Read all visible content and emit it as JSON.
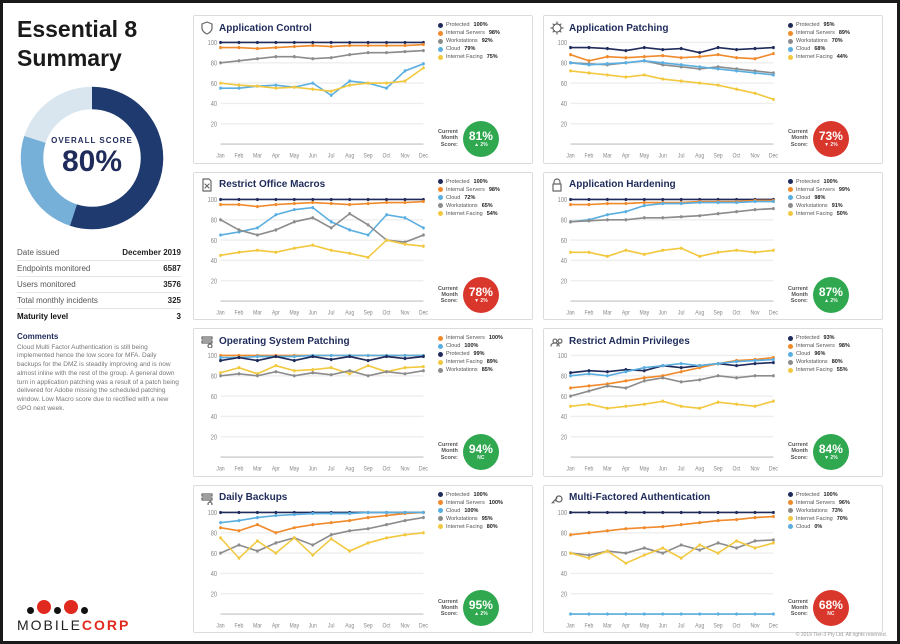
{
  "palette": {
    "brand_navy": "#1f2b5a",
    "good": "#2fa84f",
    "bad": "#d9372c",
    "donut_bg": "#d9e6ef",
    "donut_fg_light": "#6aaad6",
    "donut_fg_dark": "#1f3a6e"
  },
  "series_colors": {
    "protected": "#1f2b5a",
    "internal_servers": "#f08a2a",
    "workstations": "#8c8c8c",
    "cloud": "#5aaee0",
    "internet_facing": "#f2c83f"
  },
  "sidebar": {
    "title": "Essential 8 Summary",
    "overall": {
      "label": "OVERALL SCORE",
      "value": "80%",
      "pct": 80
    },
    "stats": [
      {
        "k": "Date issued",
        "v": "December 2019"
      },
      {
        "k": "Endpoints monitored",
        "v": "6587"
      },
      {
        "k": "Users monitored",
        "v": "3576"
      },
      {
        "k": "Total monthly incidents",
        "v": "325"
      },
      {
        "k": "Maturity level",
        "v": "3",
        "bold": true
      }
    ],
    "comments_h": "Comments",
    "comments_body": "Cloud Multi Factor Authentication is still being implemented hence the low score for MFA. Daily backups for the DMZ is steadily improving and is now almost inline with the rest of the group. A general down turn in application patching was a result of a patch being delivered for Adobe missing the scheduled patching window. Low Macro score due to rectified with a new GPO next week.",
    "logo": {
      "text_a": "MOBILE",
      "text_b": "CORP",
      "dot_color": "#e12a1f"
    }
  },
  "copyright": "© 2019 Tier-3 Pty Ltd. All rights reserved.",
  "chart_layout": {
    "months": [
      "Jan",
      "Feb",
      "Mar",
      "Apr",
      "May",
      "Jun",
      "Jul",
      "Aug",
      "Sep",
      "Oct",
      "Nov",
      "Dec"
    ],
    "yticks": [
      20,
      40,
      60,
      80,
      100
    ],
    "ylim": [
      0,
      100
    ]
  },
  "cards": [
    {
      "id": "app-control",
      "title": "Application Control",
      "icon": "shield",
      "score": {
        "pct": "81%",
        "delta": "▲ 2%",
        "color": "good"
      },
      "score_label": "Current Month Score:",
      "legend": [
        {
          "key": "protected",
          "label": "Protected",
          "val": "100%"
        },
        {
          "key": "internal_servers",
          "label": "Internal Servers",
          "val": "98%"
        },
        {
          "key": "workstations",
          "label": "Workstations",
          "val": "92%"
        },
        {
          "key": "cloud",
          "label": "Cloud",
          "val": "79%"
        },
        {
          "key": "internet_facing",
          "label": "Internet Facing",
          "val": "75%"
        }
      ],
      "series": {
        "protected": [
          100,
          100,
          100,
          100,
          100,
          100,
          100,
          100,
          100,
          100,
          100,
          100
        ],
        "internal_servers": [
          95,
          95,
          94,
          95,
          96,
          97,
          96,
          97,
          97,
          97,
          97,
          98
        ],
        "workstations": [
          80,
          82,
          84,
          86,
          86,
          84,
          85,
          88,
          90,
          90,
          91,
          92
        ],
        "cloud": [
          55,
          55,
          57,
          58,
          56,
          60,
          48,
          62,
          60,
          55,
          72,
          79
        ],
        "internet_facing": [
          60,
          58,
          57,
          55,
          56,
          54,
          52,
          58,
          60,
          60,
          62,
          75
        ]
      }
    },
    {
      "id": "app-patching",
      "title": "Application Patching",
      "icon": "gear",
      "score": {
        "pct": "73%",
        "delta": "▼ 2%",
        "color": "bad"
      },
      "score_label": "Current Month Score:",
      "legend": [
        {
          "key": "protected",
          "label": "Protected",
          "val": "95%"
        },
        {
          "key": "internal_servers",
          "label": "Internal Servers",
          "val": "89%"
        },
        {
          "key": "workstations",
          "label": "Workstations",
          "val": "70%"
        },
        {
          "key": "cloud",
          "label": "Cloud",
          "val": "68%"
        },
        {
          "key": "internet_facing",
          "label": "Internet Facing",
          "val": "44%"
        }
      ],
      "series": {
        "protected": [
          95,
          95,
          94,
          92,
          95,
          93,
          94,
          90,
          95,
          93,
          94,
          95
        ],
        "internal_servers": [
          88,
          82,
          86,
          85,
          86,
          87,
          85,
          86,
          88,
          85,
          84,
          89
        ],
        "workstations": [
          80,
          79,
          78,
          80,
          82,
          78,
          76,
          74,
          76,
          74,
          72,
          70
        ],
        "cloud": [
          80,
          78,
          79,
          80,
          82,
          80,
          78,
          76,
          74,
          72,
          70,
          68
        ],
        "internet_facing": [
          72,
          70,
          68,
          66,
          68,
          64,
          62,
          60,
          58,
          54,
          50,
          44
        ]
      }
    },
    {
      "id": "restrict-macros",
      "title": "Restrict Office Macros",
      "icon": "doc-x",
      "score": {
        "pct": "78%",
        "delta": "▼ 2%",
        "color": "bad"
      },
      "score_label": "Current Month Score:",
      "legend": [
        {
          "key": "protected",
          "label": "Protected",
          "val": "100%"
        },
        {
          "key": "internal_servers",
          "label": "Internal Servers",
          "val": "98%"
        },
        {
          "key": "cloud",
          "label": "Cloud",
          "val": "72%"
        },
        {
          "key": "workstations",
          "label": "Workstations",
          "val": "65%"
        },
        {
          "key": "internet_facing",
          "label": "Internet Facing",
          "val": "54%"
        }
      ],
      "series": {
        "protected": [
          100,
          100,
          100,
          100,
          100,
          100,
          100,
          100,
          100,
          100,
          100,
          100
        ],
        "internal_servers": [
          95,
          95,
          93,
          95,
          96,
          97,
          96,
          95,
          96,
          97,
          97,
          98
        ],
        "cloud": [
          65,
          68,
          72,
          85,
          90,
          92,
          78,
          70,
          65,
          85,
          82,
          72
        ],
        "workstations": [
          80,
          70,
          65,
          70,
          78,
          82,
          72,
          86,
          75,
          60,
          58,
          65
        ],
        "internet_facing": [
          45,
          48,
          50,
          48,
          52,
          55,
          50,
          47,
          43,
          60,
          56,
          54
        ]
      }
    },
    {
      "id": "app-hardening",
      "title": "Application Hardening",
      "icon": "lock",
      "score": {
        "pct": "87%",
        "delta": "▲ 2%",
        "color": "good"
      },
      "score_label": "Current Month Score:",
      "legend": [
        {
          "key": "protected",
          "label": "Protected",
          "val": "100%"
        },
        {
          "key": "internal_servers",
          "label": "Internal Servers",
          "val": "99%"
        },
        {
          "key": "cloud",
          "label": "Cloud",
          "val": "98%"
        },
        {
          "key": "workstations",
          "label": "Workstations",
          "val": "91%"
        },
        {
          "key": "internet_facing",
          "label": "Internet Facing",
          "val": "50%"
        }
      ],
      "series": {
        "protected": [
          100,
          100,
          100,
          100,
          100,
          100,
          100,
          100,
          100,
          100,
          100,
          100
        ],
        "internal_servers": [
          95,
          95,
          96,
          96,
          97,
          97,
          97,
          98,
          98,
          98,
          99,
          99
        ],
        "cloud": [
          78,
          80,
          85,
          88,
          94,
          96,
          96,
          97,
          97,
          97,
          98,
          98
        ],
        "workstations": [
          78,
          79,
          80,
          80,
          82,
          82,
          83,
          84,
          86,
          88,
          90,
          91
        ],
        "internet_facing": [
          48,
          48,
          44,
          50,
          46,
          50,
          52,
          44,
          48,
          50,
          48,
          50
        ]
      }
    },
    {
      "id": "os-patching",
      "title": "Operating System Patching",
      "icon": "stack-gear",
      "score": {
        "pct": "94%",
        "delta": "NC",
        "color": "good"
      },
      "score_label": "Current Month Score:",
      "legend": [
        {
          "key": "internal_servers",
          "label": "Internal Servers",
          "val": "100%"
        },
        {
          "key": "cloud",
          "label": "Cloud",
          "val": "100%"
        },
        {
          "key": "protected",
          "label": "Protected",
          "val": "99%"
        },
        {
          "key": "internet_facing",
          "label": "Internet Facing",
          "val": "89%"
        },
        {
          "key": "workstations",
          "label": "Workstations",
          "val": "85%"
        }
      ],
      "series": {
        "internal_servers": [
          100,
          100,
          100,
          100,
          100,
          100,
          100,
          100,
          100,
          100,
          100,
          100
        ],
        "cloud": [
          98,
          98,
          99,
          99,
          99,
          100,
          100,
          100,
          100,
          100,
          100,
          100
        ],
        "protected": [
          95,
          98,
          95,
          99,
          95,
          99,
          96,
          99,
          95,
          99,
          97,
          99
        ],
        "internet_facing": [
          83,
          88,
          82,
          90,
          85,
          86,
          88,
          82,
          90,
          84,
          88,
          89
        ],
        "workstations": [
          80,
          82,
          80,
          84,
          80,
          83,
          81,
          85,
          80,
          84,
          82,
          85
        ]
      }
    },
    {
      "id": "restrict-admin",
      "title": "Restrict Admin Privileges",
      "icon": "users",
      "score": {
        "pct": "84%",
        "delta": "▼ 2%",
        "color": "good"
      },
      "score_label": "Current Month Score:",
      "legend": [
        {
          "key": "protected",
          "label": "Protected",
          "val": "93%"
        },
        {
          "key": "internal_servers",
          "label": "Internal Servers",
          "val": "98%"
        },
        {
          "key": "cloud",
          "label": "Cloud",
          "val": "96%"
        },
        {
          "key": "workstations",
          "label": "Workstations",
          "val": "80%"
        },
        {
          "key": "internet_facing",
          "label": "Internet Facing",
          "val": "55%"
        }
      ],
      "series": {
        "protected": [
          83,
          85,
          84,
          86,
          85,
          90,
          88,
          90,
          92,
          90,
          92,
          93
        ],
        "internal_servers": [
          68,
          70,
          72,
          75,
          78,
          80,
          84,
          88,
          92,
          95,
          96,
          98
        ],
        "cloud": [
          80,
          82,
          80,
          84,
          88,
          90,
          92,
          90,
          92,
          94,
          95,
          96
        ],
        "workstations": [
          60,
          65,
          70,
          68,
          75,
          78,
          74,
          76,
          80,
          78,
          80,
          80
        ],
        "internet_facing": [
          50,
          52,
          48,
          50,
          52,
          55,
          50,
          48,
          54,
          52,
          50,
          55
        ]
      }
    },
    {
      "id": "daily-backups",
      "title": "Daily Backups",
      "icon": "stack-clock",
      "score": {
        "pct": "95%",
        "delta": "▲ 2%",
        "color": "good"
      },
      "score_label": "Current Month Score:",
      "legend": [
        {
          "key": "protected",
          "label": "Protected",
          "val": "100%"
        },
        {
          "key": "internal_servers",
          "label": "Internal Servers",
          "val": "100%"
        },
        {
          "key": "cloud",
          "label": "Cloud",
          "val": "100%"
        },
        {
          "key": "workstations",
          "label": "Workstations",
          "val": "95%"
        },
        {
          "key": "internet_facing",
          "label": "Internet Facing",
          "val": "80%"
        }
      ],
      "series": {
        "protected": [
          100,
          100,
          100,
          100,
          100,
          100,
          100,
          100,
          100,
          100,
          100,
          100
        ],
        "internal_servers": [
          85,
          82,
          88,
          80,
          85,
          88,
          90,
          92,
          95,
          97,
          99,
          100
        ],
        "cloud": [
          90,
          92,
          95,
          97,
          98,
          99,
          99,
          99,
          100,
          100,
          100,
          100
        ],
        "workstations": [
          60,
          68,
          62,
          70,
          75,
          68,
          78,
          82,
          84,
          88,
          92,
          95
        ],
        "internet_facing": [
          75,
          55,
          72,
          60,
          75,
          58,
          74,
          62,
          70,
          75,
          78,
          80
        ]
      }
    },
    {
      "id": "mfa",
      "title": "Multi-Factored Authentication",
      "icon": "key",
      "score": {
        "pct": "68%",
        "delta": "NC",
        "color": "bad"
      },
      "score_label": "Current Month Score:",
      "legend": [
        {
          "key": "protected",
          "label": "Protected",
          "val": "100%"
        },
        {
          "key": "internal_servers",
          "label": "Internal Servers",
          "val": "96%"
        },
        {
          "key": "workstations",
          "label": "Workstations",
          "val": "73%"
        },
        {
          "key": "internet_facing",
          "label": "Internet Facing",
          "val": "70%"
        },
        {
          "key": "cloud",
          "label": "Cloud",
          "val": "0%"
        }
      ],
      "series": {
        "protected": [
          100,
          100,
          100,
          100,
          100,
          100,
          100,
          100,
          100,
          100,
          100,
          100
        ],
        "internal_servers": [
          78,
          80,
          82,
          84,
          85,
          86,
          88,
          90,
          92,
          93,
          95,
          96
        ],
        "workstations": [
          60,
          58,
          62,
          60,
          65,
          60,
          68,
          63,
          70,
          65,
          72,
          73
        ],
        "internet_facing": [
          60,
          55,
          62,
          50,
          58,
          65,
          55,
          68,
          60,
          72,
          65,
          70
        ],
        "cloud": [
          0,
          0,
          0,
          0,
          0,
          0,
          0,
          0,
          0,
          0,
          0,
          0
        ]
      }
    }
  ]
}
